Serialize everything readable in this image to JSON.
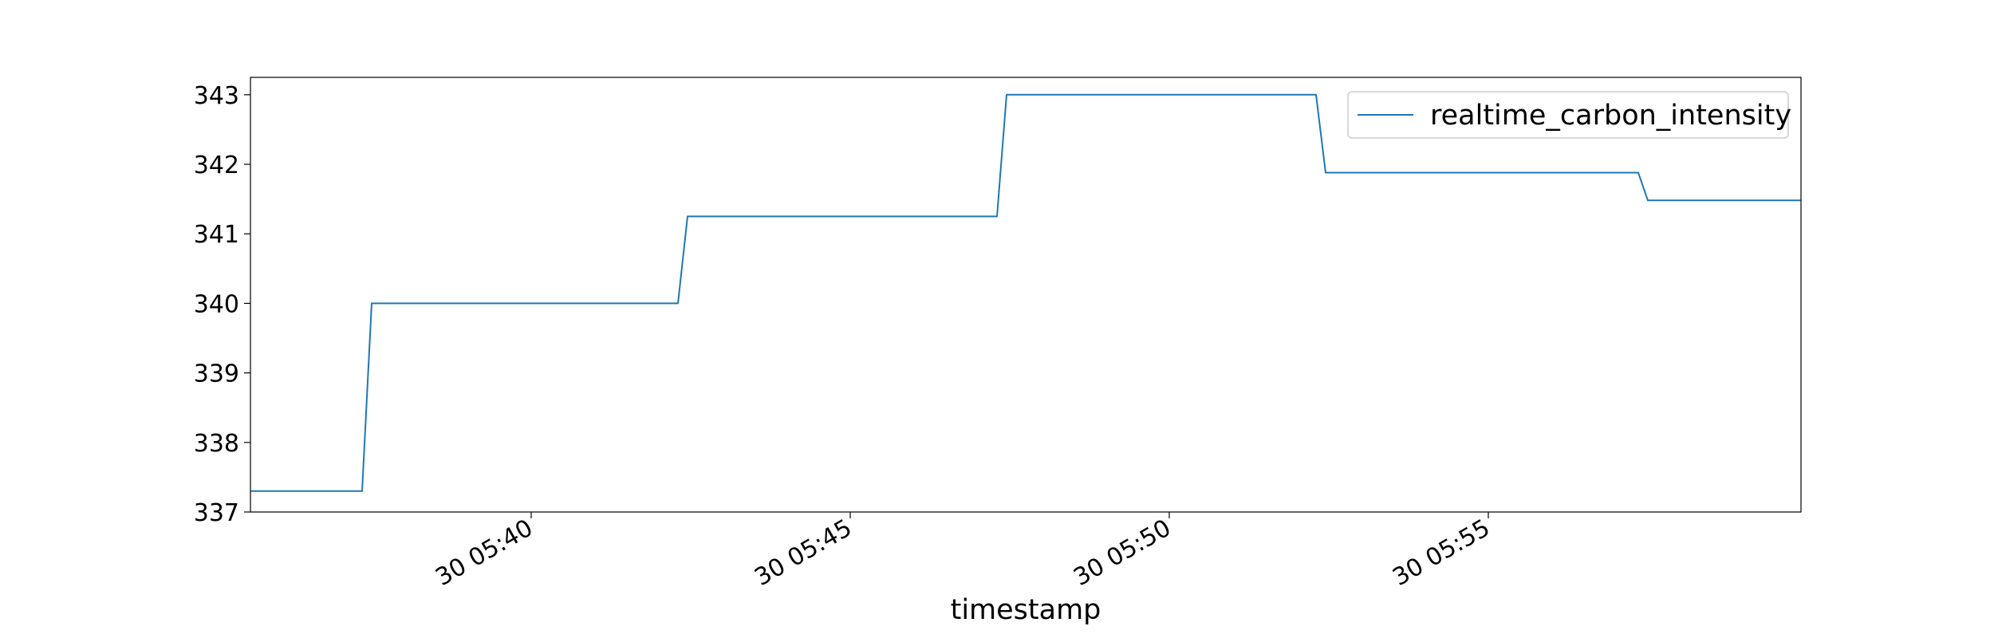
{
  "chart_data": {
    "type": "line",
    "title": "",
    "xlabel": "timestamp",
    "ylabel": "",
    "x_tick_labels": [
      "30 05:40",
      "30 05:45",
      "30 05:50",
      "30 05:55"
    ],
    "x_ticks_minutes": [
      40,
      45,
      50,
      55
    ],
    "xlim_minutes": [
      35.6,
      59.9
    ],
    "ylim": [
      337,
      343.25
    ],
    "y_ticks": [
      337,
      338,
      339,
      340,
      341,
      342,
      343
    ],
    "grid": false,
    "legend_position": "top-right",
    "series": [
      {
        "name": "realtime_carbon_intensity",
        "color": "#1f77b4",
        "x_minutes": [
          35.6,
          37.35,
          37.5,
          42.3,
          42.45,
          47.3,
          47.45,
          52.3,
          52.45,
          57.35,
          57.5,
          59.9
        ],
        "values": [
          337.3,
          337.3,
          340.0,
          340.0,
          341.25,
          341.25,
          343.0,
          343.0,
          341.88,
          341.88,
          341.48,
          341.48
        ]
      }
    ]
  }
}
